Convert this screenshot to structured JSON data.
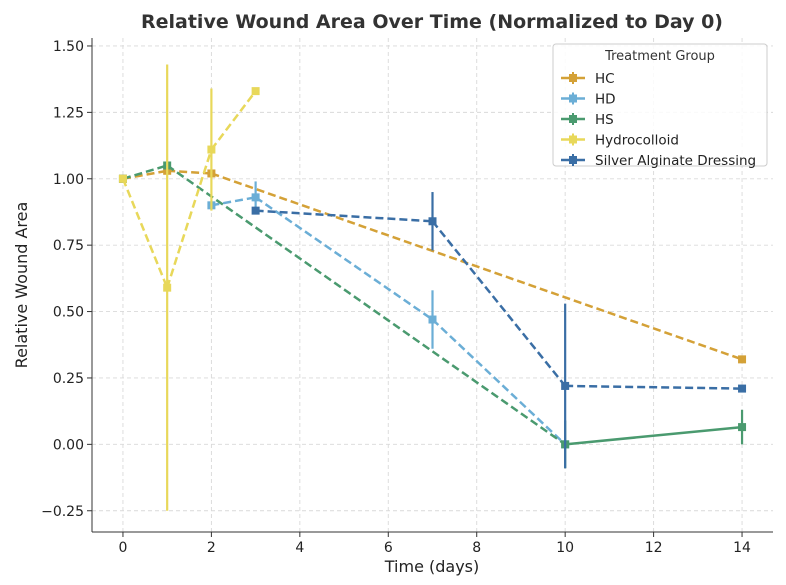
{
  "chart_data": {
    "type": "line",
    "title": "Relative Wound Area Over Time (Normalized to Day 0)",
    "xlabel": "Time (days)",
    "ylabel": "Relative Wound Area",
    "xlim": [
      -0.7,
      14.7
    ],
    "ylim": [
      -0.33,
      1.53
    ],
    "xticks": [
      0,
      2,
      4,
      6,
      8,
      10,
      12,
      14
    ],
    "xtick_labels": [
      "0",
      "2",
      "4",
      "6",
      "8",
      "10",
      "12",
      "14"
    ],
    "yticks": [
      -0.25,
      0.0,
      0.25,
      0.5,
      0.75,
      1.0,
      1.25,
      1.5
    ],
    "ytick_labels": [
      "−0.25",
      "0.00",
      "0.25",
      "0.50",
      "0.75",
      "1.00",
      "1.25",
      "1.50"
    ],
    "grid": true,
    "legend": {
      "title": "Treatment Group",
      "position": "top-right"
    },
    "series": [
      {
        "name": "HC",
        "color": "#D4A137",
        "line_style": "dashed",
        "points": [
          {
            "x": 0,
            "y": 1.0
          },
          {
            "x": 1,
            "y": 1.03
          },
          {
            "x": 2,
            "y": 1.02
          },
          {
            "x": 14,
            "y": 0.32
          }
        ]
      },
      {
        "name": "HD",
        "color": "#6BAED6",
        "line_style": "dashed",
        "points": [
          {
            "x": 2,
            "y": 0.9
          },
          {
            "x": 3,
            "y": 0.93,
            "err": 0.06
          },
          {
            "x": 7,
            "y": 0.47,
            "err": 0.11
          },
          {
            "x": 10,
            "y": 0.0
          }
        ]
      },
      {
        "name": "HS",
        "color": "#4A9A6F",
        "line_style": "dashed",
        "solid_after_x": 10,
        "points": [
          {
            "x": 0,
            "y": 1.0
          },
          {
            "x": 1,
            "y": 1.05
          },
          {
            "x": 10,
            "y": 0.0,
            "err": 0.09
          },
          {
            "x": 14,
            "y": 0.065,
            "err": 0.065
          }
        ]
      },
      {
        "name": "Hydrocolloid",
        "color": "#E8D85A",
        "line_style": "dashed",
        "points": [
          {
            "x": 0,
            "y": 1.0
          },
          {
            "x": 1,
            "y": 0.59,
            "err": 0.84
          },
          {
            "x": 2,
            "y": 1.11,
            "err": 0.23
          },
          {
            "x": 3,
            "y": 1.33
          }
        ]
      },
      {
        "name": "Silver Alginate Dressing",
        "color": "#3A6EA5",
        "line_style": "dashed",
        "points": [
          {
            "x": 3,
            "y": 0.88
          },
          {
            "x": 7,
            "y": 0.84,
            "err": 0.11
          },
          {
            "x": 10,
            "y": 0.22,
            "err": 0.31
          },
          {
            "x": 14,
            "y": 0.21
          }
        ]
      }
    ]
  }
}
